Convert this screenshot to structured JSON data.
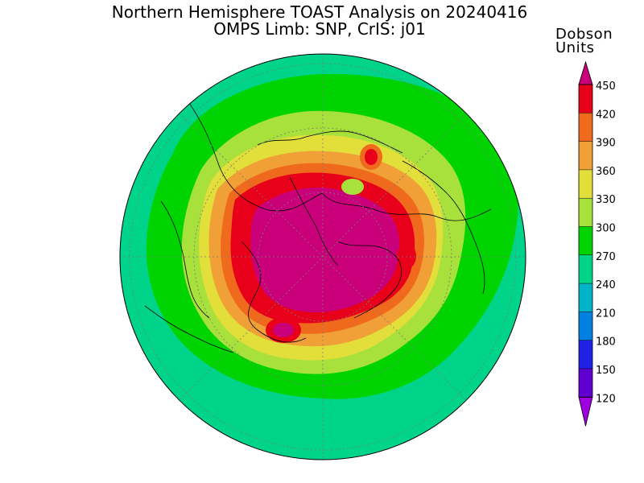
{
  "title_line1": "Northern Hemisphere TOAST Analysis on 20240416",
  "title_line2": "OMPS Limb: SNP, CrIS: j01",
  "colorbar": {
    "units_line1": "Dobson",
    "units_line2": "Units",
    "levels": [
      {
        "value": "450",
        "color": "#c9007a"
      },
      {
        "value": "420",
        "color": "#e8001a"
      },
      {
        "value": "390",
        "color": "#f06a1e"
      },
      {
        "value": "360",
        "color": "#f0a037"
      },
      {
        "value": "330",
        "color": "#e3df3a"
      },
      {
        "value": "300",
        "color": "#a8e03c"
      },
      {
        "value": "270",
        "color": "#00d400"
      },
      {
        "value": "240",
        "color": "#00d48a"
      },
      {
        "value": "210",
        "color": "#00b4c8"
      },
      {
        "value": "180",
        "color": "#0080e0"
      },
      {
        "value": "150",
        "color": "#2020e6"
      },
      {
        "value": "120",
        "color": "#6000d0"
      }
    ],
    "bottom_color": "#a000e0"
  }
}
